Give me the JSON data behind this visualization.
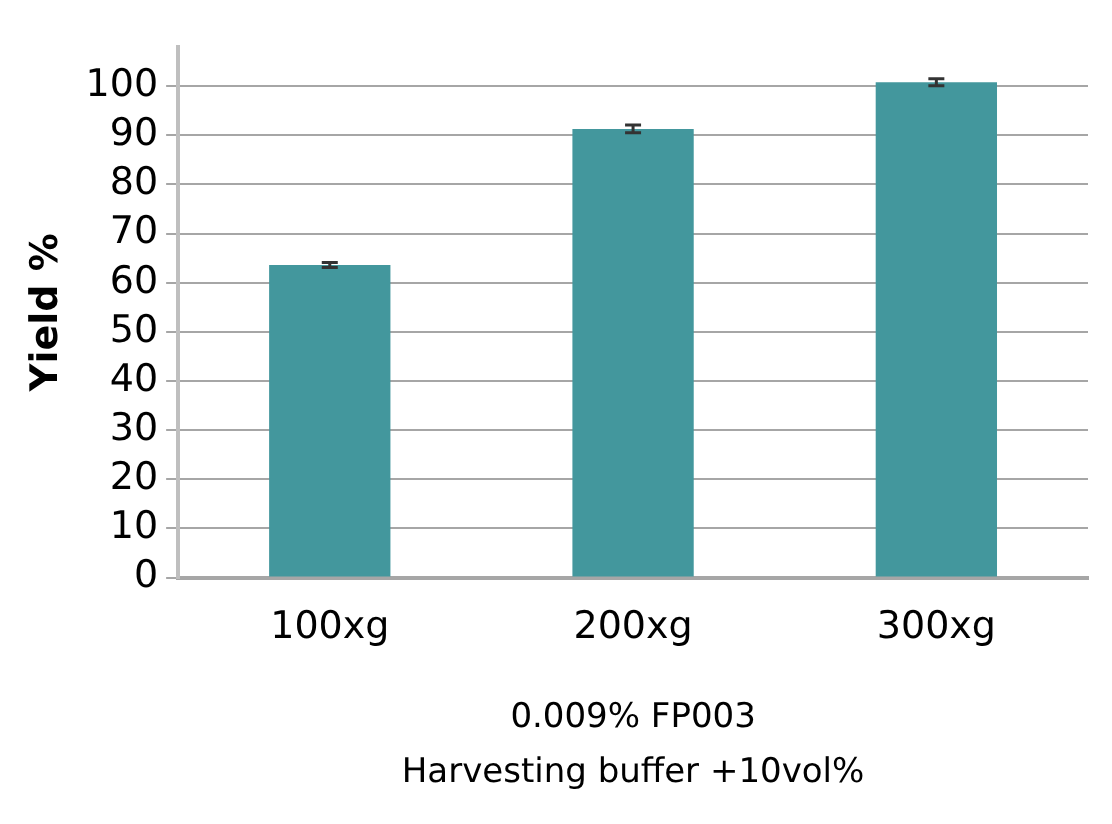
{
  "chart_data": {
    "type": "bar",
    "ylabel": "Yield %",
    "xlabel": "0.009% FP003\nHarvesting buffer +10vol%",
    "categories": [
      "100xg",
      "200xg",
      "300xg"
    ],
    "values": [
      63.6,
      91.3,
      100.8
    ],
    "errors": [
      0.5,
      0.8,
      0.7
    ],
    "color": "#43979d",
    "ylim": [
      0,
      108
    ],
    "yticks": [
      0,
      10,
      20,
      30,
      40,
      50,
      60,
      70,
      80,
      90,
      100
    ],
    "grid": "y",
    "legend": false
  }
}
